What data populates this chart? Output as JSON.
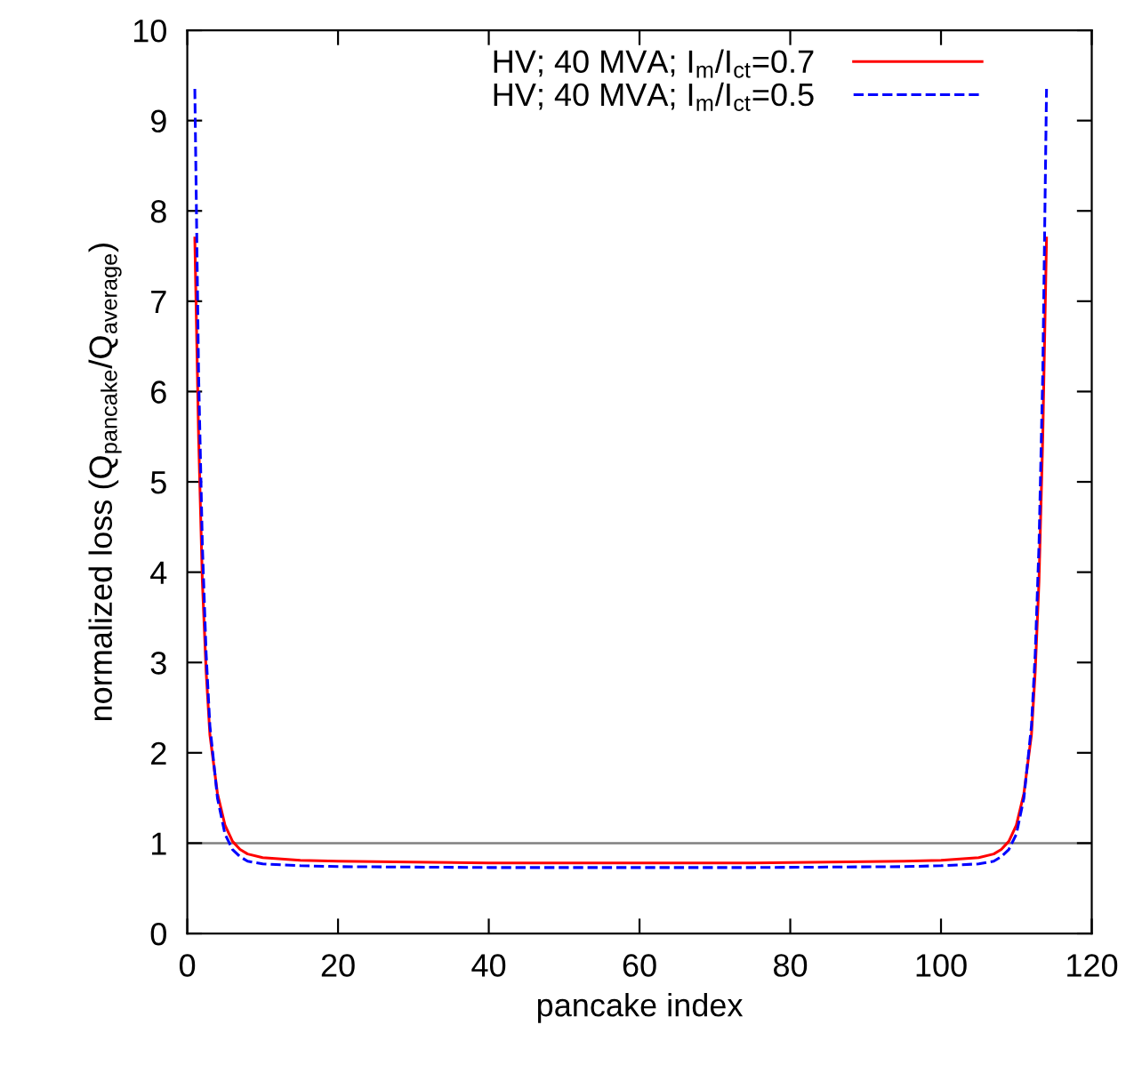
{
  "chart_data": {
    "type": "line",
    "xlabel": "pancake index",
    "ylabel": "normalized loss (Q$_{pancake}$/Q$_{average}$)",
    "xlim": [
      0,
      120
    ],
    "ylim": [
      0,
      10
    ],
    "xticks": [
      0,
      20,
      40,
      60,
      80,
      100,
      120
    ],
    "yticks": [
      0,
      1,
      2,
      3,
      4,
      5,
      6,
      7,
      8,
      9,
      10
    ],
    "grid": false,
    "legend": "top right",
    "ref_lines": [
      {
        "axis": "y",
        "value": 1,
        "color": "#808080"
      }
    ],
    "series": [
      {
        "name": "HV; 40 MVA; I$_{m}$/I$_{ct}$=0.7",
        "color": "#ff0000",
        "line_style": "solid",
        "x": [
          1,
          1.5,
          2,
          2.5,
          3,
          4,
          5,
          6,
          7,
          8,
          10,
          15,
          20,
          30,
          40,
          57.5,
          75,
          85,
          95,
          100,
          105,
          107,
          108,
          109,
          110,
          111,
          112,
          112.5,
          113,
          113.5,
          114
        ],
        "values": [
          7.7,
          5.5,
          3.9,
          2.9,
          2.2,
          1.55,
          1.2,
          1.02,
          0.93,
          0.88,
          0.84,
          0.81,
          0.8,
          0.79,
          0.78,
          0.78,
          0.78,
          0.79,
          0.8,
          0.81,
          0.84,
          0.88,
          0.93,
          1.02,
          1.2,
          1.55,
          2.2,
          2.9,
          3.9,
          5.5,
          7.7
        ]
      },
      {
        "name": "HV; 40 MVA; I$_{m}$/I$_{ct}$=0.5",
        "color": "#0000ff",
        "line_style": "dashed",
        "x": [
          1,
          1.5,
          2,
          2.5,
          3,
          4,
          5,
          6,
          7,
          8,
          10,
          15,
          20,
          40,
          57.5,
          75,
          95,
          100,
          105,
          107,
          108,
          109,
          110,
          111,
          112,
          112.5,
          113,
          113.5,
          114
        ],
        "values": [
          9.35,
          6.2,
          4.3,
          3.1,
          2.3,
          1.5,
          1.1,
          0.93,
          0.85,
          0.8,
          0.77,
          0.75,
          0.74,
          0.73,
          0.73,
          0.73,
          0.74,
          0.75,
          0.77,
          0.8,
          0.85,
          0.93,
          1.1,
          1.5,
          2.3,
          3.1,
          4.3,
          6.2,
          9.35
        ]
      }
    ]
  }
}
